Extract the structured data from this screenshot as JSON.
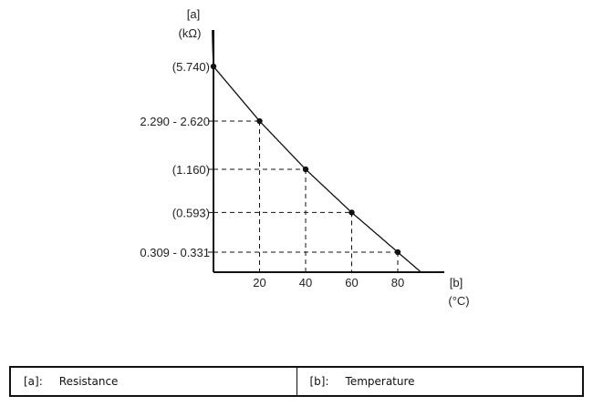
{
  "chart_data": {
    "type": "line",
    "y_axis": {
      "letter": "[a]",
      "unit": "(kΩ)"
    },
    "x_axis": {
      "letter": "[b]",
      "unit": "(°C)"
    },
    "x_ticks": [
      20,
      40,
      60,
      80
    ],
    "points": [
      {
        "x": 0,
        "y": 5.74,
        "label": "(5.740)"
      },
      {
        "x": 20,
        "y": 2.455,
        "label": "2.290 - 2.620"
      },
      {
        "x": 40,
        "y": 1.16,
        "label": "(1.160)"
      },
      {
        "x": 60,
        "y": 0.593,
        "label": "(0.593)"
      },
      {
        "x": 80,
        "y": 0.32,
        "label": "0.309 - 0.331"
      }
    ],
    "xlim": [
      0,
      90
    ],
    "grid": false,
    "line_color": "#111111"
  },
  "legend": {
    "a_key": "[a]:",
    "a_text": "Resistance",
    "b_key": "[b]:",
    "b_text": "Temperature"
  }
}
